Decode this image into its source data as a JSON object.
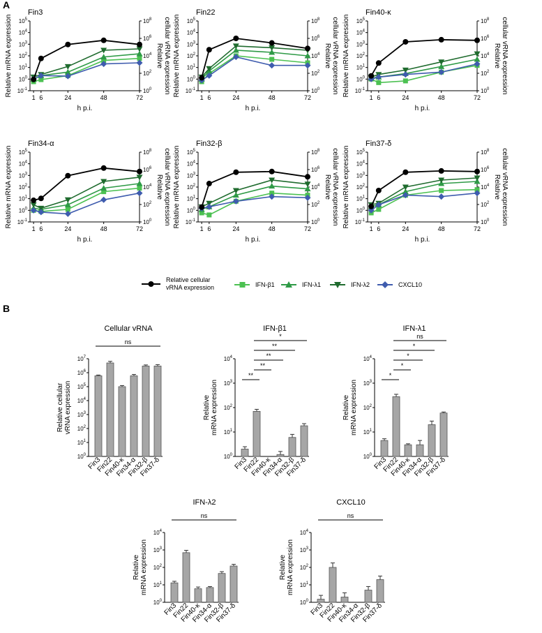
{
  "figure": {
    "panel_a_label": "A",
    "panel_b_label": "B",
    "legend": {
      "vrna": "Relative cellular vRNA expression",
      "vrna_line1": "Relative cellular",
      "vrna_line2": "vRNA expression",
      "series": [
        "IFN-β1",
        "IFN-λ1",
        "IFN-λ2",
        "CXCL10"
      ]
    },
    "colors": {
      "vrna": "#000000",
      "ifn_b1": "#4cc152",
      "ifn_l1": "#2e9a46",
      "ifn_l2": "#1f6b2e",
      "cxcl10": "#3f5cae",
      "bar": "#a6a6a6"
    }
  },
  "chart_data": [
    {
      "type": "line",
      "panel": "A",
      "title": "Fin3",
      "x": [
        1,
        6,
        24,
        48,
        72
      ],
      "xticks": [
        "1",
        "6",
        "24",
        "48",
        "72"
      ],
      "xlabel": "h p.i.",
      "ylabel": "Relative mRNA expression",
      "ylabel_right": "Relative cellular vRNA expression",
      "ylabel_right_line1": "Relative",
      "ylabel_right_line2": "cellular vRNA expression",
      "ylim": [
        0.1,
        100000
      ],
      "yticks_exp": [
        "-1",
        "0",
        "1",
        "2",
        "3",
        "4",
        "5"
      ],
      "ylim_right": [
        1,
        100000000
      ],
      "yticks_right_exp": [
        "0",
        "2",
        "4",
        "6",
        "8"
      ],
      "yscale": "log",
      "series": [
        {
          "name": "IFN-β1",
          "marker": "square",
          "values": [
            0.6,
            0.9,
            2,
            40,
            60
          ]
        },
        {
          "name": "IFN-λ1",
          "marker": "triangle-up",
          "values": [
            1,
            2,
            4,
            80,
            150
          ]
        },
        {
          "name": "IFN-λ2",
          "marker": "triangle-down",
          "values": [
            1.5,
            2.5,
            12,
            300,
            400
          ]
        },
        {
          "name": "CXCL10",
          "marker": "diamond",
          "values": [
            1,
            2,
            1.8,
            20,
            25
          ]
        }
      ],
      "vrna": {
        "name": "Relative cellular vRNA expression",
        "values": [
          20,
          5000,
          200000,
          600000,
          200000
        ]
      }
    },
    {
      "type": "line",
      "panel": "A",
      "title": "Fin22",
      "x": [
        1,
        6,
        24,
        48,
        72
      ],
      "xticks": [
        "1",
        "6",
        "24",
        "48",
        "72"
      ],
      "xlabel": "h p.i.",
      "ylabel": "Relative mRNA expression",
      "ylabel_right": "Relative cellular vRNA expression",
      "ylabel_right_line1": "Relative",
      "ylabel_right_line2": "cellular vRNA expression",
      "ylim": [
        0.1,
        100000
      ],
      "yticks_exp": [
        "-1",
        "0",
        "1",
        "2",
        "3",
        "4",
        "5"
      ],
      "ylim_right": [
        1,
        100000000
      ],
      "yticks_right_exp": [
        "0",
        "2",
        "4",
        "6",
        "8"
      ],
      "yscale": "log",
      "series": [
        {
          "name": "IFN-β1",
          "marker": "square",
          "values": [
            0.6,
            3,
            100,
            50,
            25
          ]
        },
        {
          "name": "IFN-λ1",
          "marker": "triangle-up",
          "values": [
            1,
            5,
            300,
            200,
            100
          ]
        },
        {
          "name": "IFN-λ2",
          "marker": "triangle-down",
          "values": [
            1.5,
            8,
            700,
            500,
            300
          ]
        },
        {
          "name": "CXCL10",
          "marker": "diamond",
          "values": [
            0.8,
            2,
            80,
            15,
            15
          ]
        }
      ],
      "vrna": {
        "name": "Relative cellular vRNA expression",
        "values": [
          30,
          50000,
          1000000,
          300000,
          70000
        ]
      }
    },
    {
      "type": "line",
      "panel": "A",
      "title": "Fin40-κ",
      "x": [
        1,
        6,
        24,
        48,
        72
      ],
      "xticks": [
        "1",
        "6",
        "24",
        "48",
        "72"
      ],
      "xlabel": "h p.i.",
      "ylabel": "Relative mRNA expression",
      "ylabel_right": "Relative cellular vRNA expression",
      "ylabel_right_line1": "Relative",
      "ylabel_right_line2": "cellular vRNA expression",
      "ylim": [
        0.1,
        100000
      ],
      "yticks_exp": [
        "-1",
        "0",
        "1",
        "2",
        "3",
        "4",
        "5"
      ],
      "ylim_right": [
        1,
        100000000
      ],
      "yticks_right_exp": [
        "0",
        "2",
        "4",
        "6",
        "8"
      ],
      "yscale": "log",
      "series": [
        {
          "name": "IFN-β1",
          "marker": "square",
          "values": [
            1,
            0.5,
            0.7,
            4,
            15
          ]
        },
        {
          "name": "IFN-λ1",
          "marker": "triangle-up",
          "values": [
            1.2,
            1.5,
            3,
            12,
            50
          ]
        },
        {
          "name": "IFN-λ2",
          "marker": "triangle-down",
          "values": [
            1.5,
            2.5,
            6,
            30,
            150
          ]
        },
        {
          "name": "CXCL10",
          "marker": "diamond",
          "values": [
            1,
            1.5,
            2.5,
            4,
            20
          ]
        }
      ],
      "vrna": {
        "name": "Relative cellular vRNA expression",
        "values": [
          50,
          1500,
          400000,
          700000,
          600000
        ]
      }
    },
    {
      "type": "line",
      "panel": "A",
      "title": "Fin34-α",
      "x": [
        1,
        6,
        24,
        48,
        72
      ],
      "xticks": [
        "1",
        "6",
        "24",
        "48",
        "72"
      ],
      "xlabel": "h p.i.",
      "ylabel": "Relative mRNA expression",
      "ylabel_right": "Relative cellular vRNA expression",
      "ylabel_right_line1": "Relative",
      "ylabel_right_line2": "cellular vRNA expression",
      "ylim": [
        0.1,
        100000
      ],
      "yticks_exp": [
        "-1",
        "0",
        "1",
        "2",
        "3",
        "4",
        "5"
      ],
      "ylim_right": [
        1,
        100000000
      ],
      "yticks_right_exp": [
        "0",
        "2",
        "4",
        "6",
        "8"
      ],
      "yscale": "log",
      "series": [
        {
          "name": "IFN-β1",
          "marker": "square",
          "values": [
            1,
            0.8,
            1.2,
            40,
            80
          ]
        },
        {
          "name": "IFN-λ1",
          "marker": "triangle-up",
          "values": [
            1.5,
            1.2,
            3,
            80,
            200
          ]
        },
        {
          "name": "IFN-λ2",
          "marker": "triangle-down",
          "values": [
            3,
            1.5,
            8,
            300,
            700
          ]
        },
        {
          "name": "CXCL10",
          "marker": "diamond",
          "values": [
            1,
            0.7,
            0.5,
            8,
            30
          ]
        }
      ],
      "vrna": {
        "name": "Relative cellular vRNA expression",
        "values": [
          300,
          500,
          200000,
          1500000,
          600000
        ]
      }
    },
    {
      "type": "line",
      "panel": "A",
      "title": "Fin32-β",
      "x": [
        1,
        6,
        24,
        48,
        72
      ],
      "xticks": [
        "1",
        "6",
        "24",
        "48",
        "72"
      ],
      "xlabel": "h p.i.",
      "ylabel": "Relative mRNA expression",
      "ylabel_right": "Relative cellular vRNA expression",
      "ylabel_right_line1": "Relative",
      "ylabel_right_line2": "cellular vRNA expression",
      "ylim": [
        0.1,
        100000
      ],
      "yticks_exp": [
        "-1",
        "0",
        "1",
        "2",
        "3",
        "4",
        "5"
      ],
      "ylim_right": [
        1,
        100000000
      ],
      "yticks_right_exp": [
        "0",
        "2",
        "4",
        "6",
        "8"
      ],
      "yscale": "log",
      "series": [
        {
          "name": "IFN-β1",
          "marker": "square",
          "values": [
            0.6,
            0.4,
            6,
            30,
            20
          ]
        },
        {
          "name": "IFN-λ1",
          "marker": "triangle-up",
          "values": [
            1.2,
            2,
            20,
            120,
            70
          ]
        },
        {
          "name": "IFN-λ2",
          "marker": "triangle-down",
          "values": [
            2,
            4,
            50,
            400,
            180
          ]
        },
        {
          "name": "CXCL10",
          "marker": "diamond",
          "values": [
            1.5,
            2,
            6,
            15,
            12
          ]
        }
      ],
      "vrna": {
        "name": "Relative cellular vRNA expression",
        "values": [
          50,
          25000,
          500000,
          600000,
          150000
        ]
      }
    },
    {
      "type": "line",
      "panel": "A",
      "title": "Fin37-δ",
      "x": [
        1,
        6,
        24,
        48,
        72
      ],
      "xticks": [
        "1",
        "6",
        "24",
        "48",
        "72"
      ],
      "xlabel": "h p.i.",
      "ylabel": "Relative mRNA expression",
      "ylabel_right": "Relative cellular vRNA expression",
      "ylabel_right_line1": "Relative",
      "ylabel_right_line2": "cellular vRNA expression",
      "ylim": [
        0.1,
        100000
      ],
      "yticks_exp": [
        "-1",
        "0",
        "1",
        "2",
        "3",
        "4",
        "5"
      ],
      "ylim_right": [
        1,
        100000000
      ],
      "yticks_right_exp": [
        "0",
        "2",
        "4",
        "6",
        "8"
      ],
      "yscale": "log",
      "series": [
        {
          "name": "IFN-β1",
          "marker": "square",
          "values": [
            0.6,
            1.2,
            20,
            50,
            60
          ]
        },
        {
          "name": "IFN-λ1",
          "marker": "triangle-up",
          "values": [
            2,
            3,
            40,
            200,
            300
          ]
        },
        {
          "name": "IFN-λ2",
          "marker": "triangle-down",
          "values": [
            3,
            4,
            100,
            400,
            600
          ]
        },
        {
          "name": "CXCL10",
          "marker": "diamond",
          "values": [
            1,
            3,
            20,
            15,
            30
          ]
        }
      ],
      "vrna": {
        "name": "Relative cellular vRNA expression",
        "values": [
          60,
          4000,
          500000,
          700000,
          600000
        ]
      }
    },
    {
      "type": "bar",
      "panel": "B",
      "title": "Cellular vRNA",
      "categories": [
        "Fin3",
        "Fin22",
        "Fin40-κ",
        "Fin34-α",
        "Fin32-β",
        "Fin37-δ"
      ],
      "values": [
        600000,
        5000000,
        100000,
        600000,
        3000000,
        3000000
      ],
      "errors": [
        80000,
        1500000,
        20000,
        150000,
        600000,
        800000
      ],
      "ylabel": "Relative cellular vRNA expression",
      "ylabel_line1": "Relative cellular",
      "ylabel_line2": "vRNA expression",
      "yscale": "log",
      "ylim": [
        1,
        10000000
      ],
      "yticks_exp": [
        "0",
        "1",
        "2",
        "3",
        "4",
        "5",
        "6",
        "7"
      ],
      "significance": [
        {
          "label": "ns",
          "from": 0,
          "to": 5
        }
      ]
    },
    {
      "type": "bar",
      "panel": "B",
      "title": "IFN-β1",
      "categories": [
        "Fin3",
        "Fin22",
        "Fin40-κ",
        "Fin34-α",
        "Fin32-β",
        "Fin37-δ"
      ],
      "values": [
        2,
        70,
        1,
        1.2,
        6,
        18
      ],
      "errors": [
        0.5,
        15,
        0,
        0.4,
        2,
        4
      ],
      "ylabel": "Relative mRNA expression",
      "ylabel_line1": "Relative",
      "ylabel_line2": "mRNA expression",
      "yscale": "log",
      "ylim": [
        1,
        10000
      ],
      "yticks_exp": [
        "0",
        "1",
        "2",
        "3",
        "4"
      ],
      "significance": [
        {
          "label": "**",
          "from": 0,
          "to": 1
        },
        {
          "label": "**",
          "from": 1,
          "to": 2
        },
        {
          "label": "**",
          "from": 1,
          "to": 3
        },
        {
          "label": "**",
          "from": 1,
          "to": 4
        },
        {
          "label": "*",
          "from": 1,
          "to": 5
        }
      ]
    },
    {
      "type": "bar",
      "panel": "B",
      "title": "IFN-λ1",
      "categories": [
        "Fin3",
        "Fin22",
        "Fin40-κ",
        "Fin34-α",
        "Fin32-β",
        "Fin37-δ"
      ],
      "values": [
        4.5,
        280,
        3,
        3,
        20,
        60
      ],
      "errors": [
        0.8,
        70,
        0.3,
        1.5,
        8,
        6
      ],
      "ylabel": "Relative mRNA expression",
      "ylabel_line1": "Relative",
      "ylabel_line2": "mRNA expression",
      "yscale": "log",
      "ylim": [
        1,
        10000
      ],
      "yticks_exp": [
        "0",
        "1",
        "2",
        "3",
        "4"
      ],
      "significance": [
        {
          "label": "*",
          "from": 0,
          "to": 1
        },
        {
          "label": "*",
          "from": 1,
          "to": 2
        },
        {
          "label": "*",
          "from": 1,
          "to": 3
        },
        {
          "label": "*",
          "from": 1,
          "to": 4
        },
        {
          "label": "ns",
          "from": 1,
          "to": 5
        }
      ]
    },
    {
      "type": "bar",
      "panel": "B",
      "title": "IFN-λ2",
      "categories": [
        "Fin3",
        "Fin22",
        "Fin40-κ",
        "Fin34-α",
        "Fin32-β",
        "Fin37-δ"
      ],
      "values": [
        13,
        700,
        6,
        7,
        45,
        120
      ],
      "errors": [
        3,
        250,
        1.5,
        1,
        12,
        30
      ],
      "ylabel": "Relative mRNA expression",
      "ylabel_line1": "Relative",
      "ylabel_line2": "mRNA expression",
      "yscale": "log",
      "ylim": [
        1,
        10000
      ],
      "yticks_exp": [
        "0",
        "1",
        "2",
        "3",
        "4"
      ],
      "significance": [
        {
          "label": "ns",
          "from": 0,
          "to": 5
        }
      ]
    },
    {
      "type": "bar",
      "panel": "B",
      "title": "CXCL10",
      "categories": [
        "Fin3",
        "Fin22",
        "Fin40-κ",
        "Fin34-α",
        "Fin32-β",
        "Fin37-δ"
      ],
      "values": [
        1.5,
        100,
        2,
        1,
        5,
        20
      ],
      "errors": [
        1,
        80,
        1.5,
        0,
        3,
        12
      ],
      "ylabel": "Relative mRNA expression",
      "ylabel_line1": "Relative",
      "ylabel_line2": "mRNA expression",
      "yscale": "log",
      "ylim": [
        1,
        10000
      ],
      "yticks_exp": [
        "0",
        "1",
        "2",
        "3",
        "4"
      ],
      "significance": [
        {
          "label": "ns",
          "from": 0,
          "to": 5
        }
      ]
    }
  ]
}
